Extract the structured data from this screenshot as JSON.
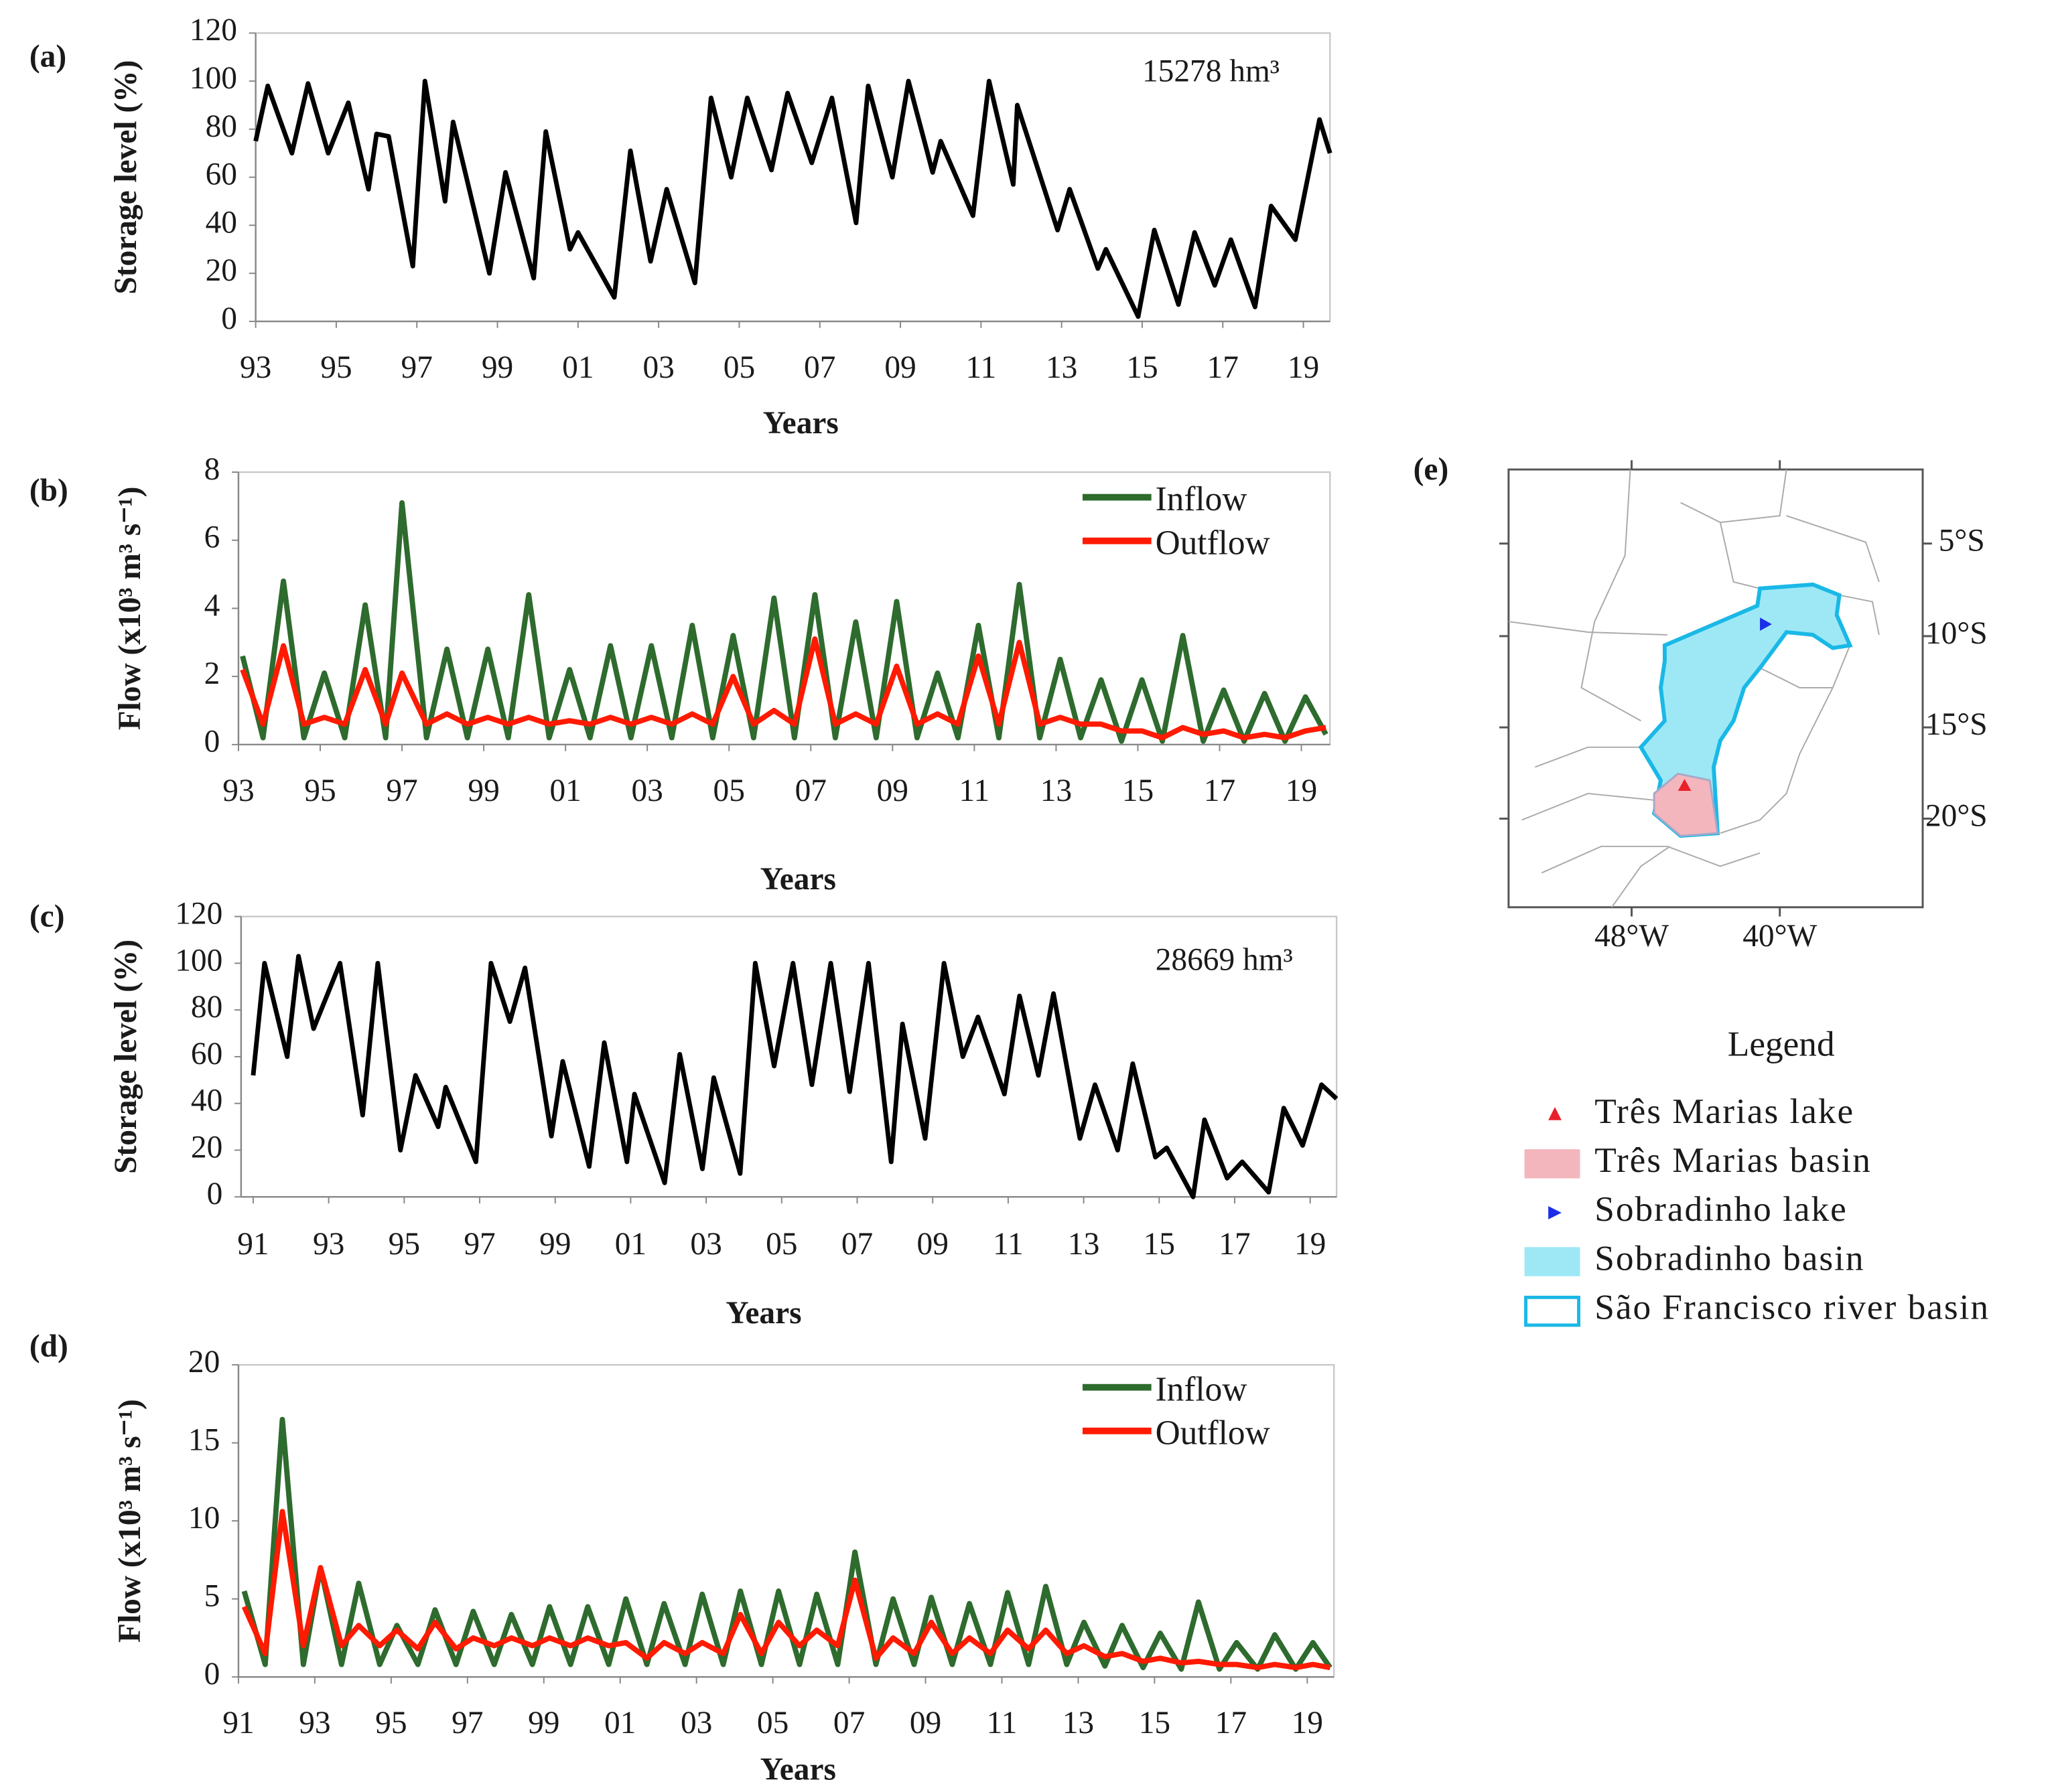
{
  "chart_data": [
    {
      "type": "line",
      "panel": "(a)",
      "y_label": "Storage level (%)",
      "x_label": "Years",
      "annotation": "15278 hm³",
      "xlim": [
        1993,
        2019.66
      ],
      "ylim": [
        0,
        120
      ],
      "yticks": [
        0,
        20,
        40,
        60,
        80,
        100,
        120
      ],
      "xticks": [
        {
          "value": 1993,
          "label": "93"
        },
        {
          "value": 1995,
          "label": "95"
        },
        {
          "value": 1997,
          "label": "97"
        },
        {
          "value": 1999,
          "label": "99"
        },
        {
          "value": 2001,
          "label": "01"
        },
        {
          "value": 2003,
          "label": "03"
        },
        {
          "value": 2005,
          "label": "05"
        },
        {
          "value": 2007,
          "label": "07"
        },
        {
          "value": 2009,
          "label": "09"
        },
        {
          "value": 2011,
          "label": "11"
        },
        {
          "value": 2013,
          "label": "13"
        },
        {
          "value": 2015,
          "label": "15"
        },
        {
          "value": 2017,
          "label": "17"
        },
        {
          "value": 2019,
          "label": "19"
        }
      ],
      "x": [
        1993,
        1993.3,
        1993.9,
        1994.3,
        1994.8,
        1995.3,
        1995.8,
        1996.0,
        1996.3,
        1996.9,
        1997.2,
        1997.7,
        1997.9,
        1998.8,
        1999.2,
        1999.9,
        2000.2,
        2000.8,
        2001.0,
        2001.9,
        2002.3,
        2002.8,
        2003.2,
        2003.9,
        2004.3,
        2004.8,
        2005.2,
        2005.8,
        2006.2,
        2006.8,
        2007.3,
        2007.9,
        2008.2,
        2008.8,
        2009.2,
        2009.8,
        2010.0,
        2010.8,
        2011.2,
        2011.8,
        2011.9,
        2012.9,
        2013.2,
        2013.9,
        2014.1,
        2014.9,
        2015.3,
        2015.9,
        2016.3,
        2016.8,
        2017.2,
        2017.8,
        2018.2,
        2018.8,
        2019.4,
        2019.66
      ],
      "series": [
        {
          "color": "#000000",
          "values": [
            75,
            98,
            70,
            99,
            70,
            91,
            55,
            78,
            77,
            23,
            100,
            50,
            83,
            20,
            62,
            18,
            79,
            30,
            37,
            10,
            71,
            25,
            55,
            16,
            93,
            60,
            93,
            63,
            95,
            66,
            93,
            41,
            98,
            60,
            100,
            62,
            75,
            44,
            100,
            57,
            90,
            38,
            55,
            22,
            30,
            2,
            38,
            7,
            37,
            15,
            34,
            6,
            48,
            34,
            84,
            70
          ]
        }
      ]
    },
    {
      "type": "line",
      "panel": "(b)",
      "y_label": "Flow (x10³ m³ s⁻¹)",
      "x_label": "Years",
      "xlim": [
        1993,
        2019.7
      ],
      "ylim": [
        0,
        8
      ],
      "yticks": [
        0,
        2,
        4,
        6,
        8
      ],
      "xticks": [
        {
          "value": 1993,
          "label": "93"
        },
        {
          "value": 1995,
          "label": "95"
        },
        {
          "value": 1997,
          "label": "97"
        },
        {
          "value": 1999,
          "label": "99"
        },
        {
          "value": 2001,
          "label": "01"
        },
        {
          "value": 2003,
          "label": "03"
        },
        {
          "value": 2005,
          "label": "05"
        },
        {
          "value": 2007,
          "label": "07"
        },
        {
          "value": 2009,
          "label": "09"
        },
        {
          "value": 2011,
          "label": "11"
        },
        {
          "value": 2013,
          "label": "13"
        },
        {
          "value": 2015,
          "label": "15"
        },
        {
          "value": 2017,
          "label": "17"
        },
        {
          "value": 2019,
          "label": "19"
        }
      ],
      "x": [
        1993.1,
        1993.6,
        1994.1,
        1994.6,
        1995.1,
        1995.6,
        1996.1,
        1996.6,
        1997.0,
        1997.6,
        1998.1,
        1998.6,
        1999.1,
        1999.6,
        2000.1,
        2000.6,
        2001.1,
        2001.6,
        2002.1,
        2002.6,
        2003.1,
        2003.6,
        2004.1,
        2004.6,
        2005.1,
        2005.6,
        2006.1,
        2006.6,
        2007.1,
        2007.6,
        2008.1,
        2008.6,
        2009.1,
        2009.6,
        2010.1,
        2010.6,
        2011.1,
        2011.6,
        2012.1,
        2012.6,
        2013.1,
        2013.6,
        2014.1,
        2014.6,
        2015.1,
        2015.6,
        2016.1,
        2016.6,
        2017.1,
        2017.6,
        2018.1,
        2018.6,
        2019.1,
        2019.6
      ],
      "series": [
        {
          "name": "Inflow",
          "color": "#2e6b2e",
          "values": [
            2.6,
            0.2,
            4.8,
            0.2,
            2.1,
            0.2,
            4.1,
            0.2,
            7.1,
            0.2,
            2.8,
            0.2,
            2.8,
            0.2,
            4.4,
            0.2,
            2.2,
            0.2,
            2.9,
            0.2,
            2.9,
            0.2,
            3.5,
            0.2,
            3.2,
            0.2,
            4.3,
            0.2,
            4.4,
            0.2,
            3.6,
            0.2,
            4.2,
            0.2,
            2.1,
            0.2,
            3.5,
            0.2,
            4.7,
            0.2,
            2.5,
            0.2,
            1.9,
            0.1,
            1.9,
            0.1,
            3.2,
            0.1,
            1.6,
            0.1,
            1.5,
            0.1,
            1.4,
            0.3
          ]
        },
        {
          "name": "Outflow",
          "color": "#ff1a00",
          "values": [
            2.2,
            0.6,
            2.9,
            0.6,
            0.8,
            0.6,
            2.2,
            0.6,
            2.1,
            0.6,
            0.9,
            0.6,
            0.8,
            0.6,
            0.8,
            0.6,
            0.7,
            0.6,
            0.8,
            0.6,
            0.8,
            0.6,
            0.9,
            0.6,
            2.0,
            0.6,
            1.0,
            0.6,
            3.1,
            0.6,
            0.9,
            0.6,
            2.3,
            0.6,
            0.9,
            0.6,
            2.6,
            0.6,
            3.0,
            0.6,
            0.8,
            0.6,
            0.6,
            0.4,
            0.4,
            0.2,
            0.5,
            0.3,
            0.4,
            0.2,
            0.3,
            0.2,
            0.4,
            0.5
          ]
        }
      ]
    },
    {
      "type": "line",
      "panel": "(c)",
      "y_label": "Storage level (%)",
      "x_label": "Years",
      "annotation": "28669 hm³",
      "xlim": [
        1990.68,
        2019.7
      ],
      "ylim": [
        0,
        120
      ],
      "yticks": [
        0,
        20,
        40,
        60,
        80,
        100,
        120
      ],
      "xticks": [
        {
          "value": 1991,
          "label": "91"
        },
        {
          "value": 1993,
          "label": "93"
        },
        {
          "value": 1995,
          "label": "95"
        },
        {
          "value": 1997,
          "label": "97"
        },
        {
          "value": 1999,
          "label": "99"
        },
        {
          "value": 2001,
          "label": "01"
        },
        {
          "value": 2003,
          "label": "03"
        },
        {
          "value": 2005,
          "label": "05"
        },
        {
          "value": 2007,
          "label": "07"
        },
        {
          "value": 2009,
          "label": "09"
        },
        {
          "value": 2011,
          "label": "11"
        },
        {
          "value": 2013,
          "label": "13"
        },
        {
          "value": 2015,
          "label": "15"
        },
        {
          "value": 2017,
          "label": "17"
        },
        {
          "value": 2019,
          "label": "19"
        }
      ],
      "x": [
        1991,
        1991.3,
        1991.9,
        1992.2,
        1992.6,
        1993.3,
        1993.9,
        1994.3,
        1994.9,
        1995.3,
        1995.9,
        1996.1,
        1996.9,
        1997.3,
        1997.8,
        1998.2,
        1998.9,
        1999.2,
        1999.9,
        2000.3,
        2000.9,
        2001.1,
        2001.9,
        2002.3,
        2002.9,
        2003.2,
        2003.9,
        2004.3,
        2004.8,
        2005.3,
        2005.8,
        2006.3,
        2006.8,
        2007.3,
        2007.9,
        2008.2,
        2008.8,
        2009.3,
        2009.8,
        2010.2,
        2010.9,
        2011.3,
        2011.8,
        2012.2,
        2012.9,
        2013.3,
        2013.9,
        2014.3,
        2014.9,
        2015.2,
        2015.9,
        2016.2,
        2016.8,
        2017.2,
        2017.9,
        2018.3,
        2018.8,
        2019.3,
        2019.7
      ],
      "series": [
        {
          "color": "#000000",
          "values": [
            52,
            100,
            60,
            103,
            72,
            100,
            35,
            100,
            20,
            52,
            30,
            47,
            15,
            100,
            75,
            98,
            26,
            58,
            13,
            66,
            15,
            44,
            6,
            61,
            12,
            51,
            10,
            100,
            56,
            100,
            48,
            100,
            45,
            100,
            15,
            74,
            25,
            100,
            60,
            77,
            44,
            86,
            52,
            87,
            25,
            48,
            20,
            57,
            17,
            21,
            0,
            33,
            8,
            15,
            2,
            38,
            22,
            48,
            42
          ]
        }
      ]
    },
    {
      "type": "line",
      "panel": "(d)",
      "y_label": "Flow (x10³ m³ s⁻¹)",
      "x_label": "Years",
      "xlim": [
        1991,
        2019.7
      ],
      "ylim": [
        0,
        20
      ],
      "yticks": [
        0,
        5,
        10,
        15,
        20
      ],
      "xticks": [
        {
          "value": 1991,
          "label": "91"
        },
        {
          "value": 1993,
          "label": "93"
        },
        {
          "value": 1995,
          "label": "95"
        },
        {
          "value": 1997,
          "label": "97"
        },
        {
          "value": 1999,
          "label": "99"
        },
        {
          "value": 2001,
          "label": "01"
        },
        {
          "value": 2003,
          "label": "03"
        },
        {
          "value": 2005,
          "label": "05"
        },
        {
          "value": 2007,
          "label": "07"
        },
        {
          "value": 2009,
          "label": "09"
        },
        {
          "value": 2011,
          "label": "11"
        },
        {
          "value": 2013,
          "label": "13"
        },
        {
          "value": 2015,
          "label": "15"
        },
        {
          "value": 2017,
          "label": "17"
        },
        {
          "value": 2019,
          "label": "19"
        }
      ],
      "x": [
        1991.15,
        1991.7,
        1992.15,
        1992.7,
        1993.15,
        1993.7,
        1994.15,
        1994.7,
        1995.15,
        1995.7,
        1996.15,
        1996.7,
        1997.15,
        1997.7,
        1998.15,
        1998.7,
        1999.15,
        1999.7,
        2000.15,
        2000.7,
        2001.15,
        2001.7,
        2002.15,
        2002.7,
        2003.15,
        2003.7,
        2004.15,
        2004.7,
        2005.15,
        2005.7,
        2006.15,
        2006.7,
        2007.15,
        2007.7,
        2008.15,
        2008.7,
        2009.15,
        2009.7,
        2010.15,
        2010.7,
        2011.15,
        2011.7,
        2012.15,
        2012.7,
        2013.15,
        2013.7,
        2014.15,
        2014.7,
        2015.15,
        2015.7,
        2016.15,
        2016.7,
        2017.15,
        2017.7,
        2018.15,
        2018.7,
        2019.15,
        2019.6
      ],
      "series": [
        {
          "name": "Inflow",
          "color": "#2e6b2e",
          "values": [
            5.5,
            0.8,
            16.5,
            0.8,
            7,
            0.8,
            6,
            0.8,
            3.3,
            0.8,
            4.3,
            0.8,
            4.2,
            0.8,
            4,
            0.8,
            4.5,
            0.8,
            4.5,
            0.8,
            5,
            0.8,
            4.7,
            0.8,
            5.3,
            0.8,
            5.5,
            0.8,
            5.5,
            0.8,
            5.3,
            0.8,
            8,
            0.8,
            5,
            0.8,
            5.1,
            0.8,
            4.7,
            0.8,
            5.4,
            0.8,
            5.8,
            0.8,
            3.5,
            0.7,
            3.3,
            0.6,
            2.8,
            0.5,
            4.8,
            0.5,
            2.2,
            0.5,
            2.7,
            0.5,
            2.2,
            0.6
          ]
        },
        {
          "name": "Outflow",
          "color": "#ff1a00",
          "values": [
            4.5,
            1.5,
            10.6,
            2,
            7,
            2,
            3.3,
            2,
            3,
            1.8,
            3.5,
            1.8,
            2.5,
            2,
            2.5,
            2,
            2.5,
            2,
            2.5,
            2,
            2.2,
            1.2,
            2.2,
            1.5,
            2.2,
            1.5,
            4,
            1.5,
            3.5,
            2,
            3,
            2,
            6.2,
            1.2,
            2.5,
            1.5,
            3.5,
            1.5,
            2.5,
            1.5,
            3,
            1.8,
            3,
            1.5,
            2,
            1.3,
            1.5,
            1,
            1.2,
            0.9,
            1,
            0.8,
            0.8,
            0.6,
            0.8,
            0.6,
            0.8,
            0.6
          ]
        }
      ]
    }
  ],
  "map": {
    "panel": "(e)",
    "lat_ticks": [
      "5°S",
      "10°S",
      "15°S",
      "20°S"
    ],
    "lon_ticks": [
      "48°W",
      "40°W"
    ],
    "legend_title": "Legend",
    "legend": [
      "Três Marias lake",
      "Três Marias basin",
      "Sobradinho lake",
      "Sobradinho basin",
      "São Francisco river basin"
    ]
  }
}
